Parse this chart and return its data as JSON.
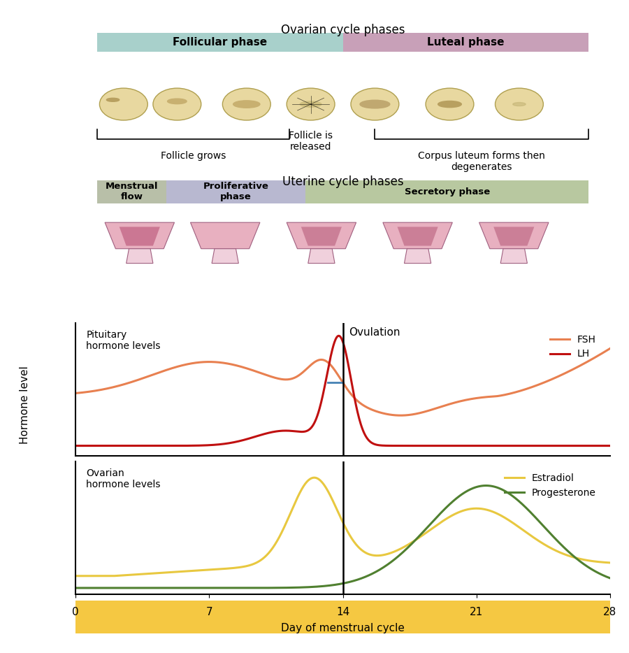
{
  "ovarian_title": "Ovarian cycle phases",
  "follicular_label": "Follicular phase",
  "luteal_label": "Luteal phase",
  "follicular_color": "#a8d0cb",
  "luteal_color": "#c8a0b8",
  "follicle_grows_label": "Follicle grows",
  "follicle_released_label": "Follicle is\nreleased",
  "corpus_luteum_label": "Corpus luteum forms then\ndegenerates",
  "uterine_title": "Uterine cycle phases",
  "menstrual_label": "Menstrual\nflow",
  "proliferative_label": "Proliferative\nphase",
  "secretory_label": "Secretory phase",
  "menstrual_color": "#b8bfa8",
  "proliferative_color": "#b8b8d0",
  "secretory_color": "#b8c8a0",
  "pituitary_label": "Pituitary\nhormone levels",
  "ovarian_hormone_label": "Ovarian\nhormone levels",
  "ovulation_label": "Ovulation",
  "hormone_level_ylabel": "Hormone level",
  "xaxis_label": "Day of menstrual cycle",
  "xaxis_color": "#f5c842",
  "xticks": [
    0,
    7,
    14,
    21,
    28
  ],
  "ovulation_day": 14,
  "fsh_color": "#e88050",
  "lh_color": "#c01010",
  "estradiol_color": "#e8c840",
  "progesterone_color": "#508030",
  "fsh_label": "FSH",
  "lh_label": "LH",
  "estradiol_label": "Estradiol",
  "progesterone_label": "Progesterone"
}
